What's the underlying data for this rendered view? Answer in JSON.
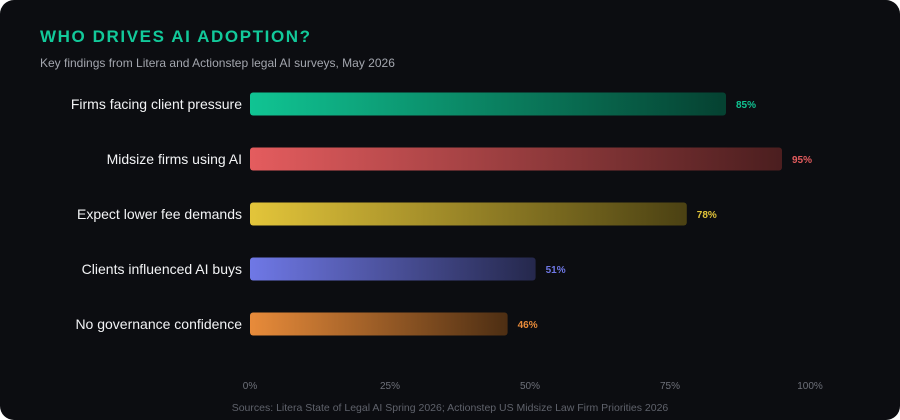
{
  "header": {
    "title": "WHO DRIVES AI ADOPTION?",
    "subtitle": "Key findings from Litera and Actionstep legal AI surveys, May 2026"
  },
  "footer": {
    "source": "Sources: Litera State of Legal AI Spring 2026; Actionstep US Midsize Law Firm Priorities 2026"
  },
  "colors": {
    "background": "#0c0d11",
    "title": "#12c99a"
  },
  "chart_data": {
    "type": "bar",
    "orientation": "horizontal",
    "title": "WHO DRIVES AI ADOPTION?",
    "subtitle": "Key findings from Litera and Actionstep legal AI surveys, May 2026",
    "categories": [
      "Firms facing client pressure",
      "Midsize firms using AI",
      "Expect lower fee demands",
      "Clients influenced AI buys",
      "No governance confidence"
    ],
    "values": [
      85,
      95,
      78,
      51,
      46
    ],
    "value_labels": [
      "85%",
      "95%",
      "78%",
      "51%",
      "46%"
    ],
    "bar_colors": [
      "#10c493",
      "#e45c5e",
      "#e3c53a",
      "#6f78e6",
      "#e88b3a"
    ],
    "xlim": [
      0,
      100
    ],
    "xticks": [
      0,
      25,
      50,
      75,
      100
    ],
    "xtick_labels": [
      "0%",
      "25%",
      "50%",
      "75%",
      "100%"
    ],
    "xlabel": "",
    "ylabel": "",
    "grid": false,
    "legend": "none"
  }
}
